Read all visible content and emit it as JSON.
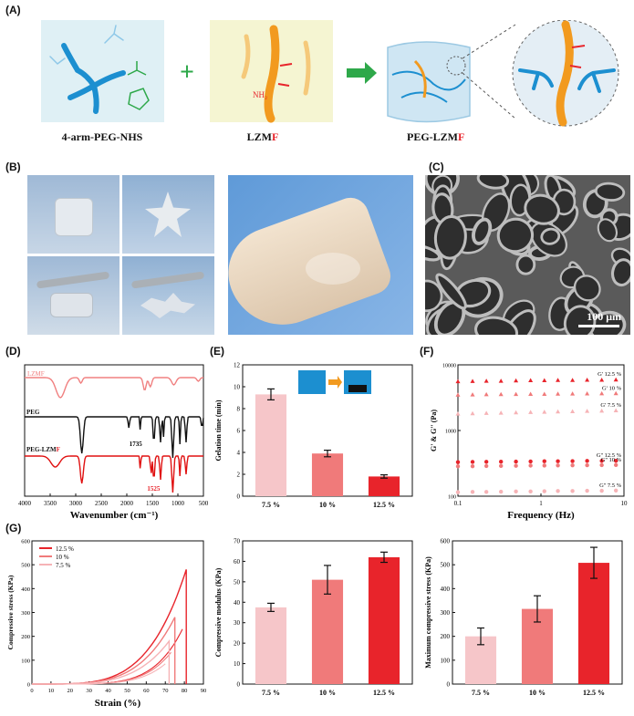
{
  "panels": {
    "A": "(A)",
    "B": "(B)",
    "C": "(C)",
    "D": "(D)",
    "E": "(E)",
    "F": "(F)",
    "G": "(G)"
  },
  "schemeA": {
    "label1": "4-arm-PEG-NHS",
    "label2_main": "LZM",
    "label2_accent": "F",
    "label3_main": "PEG-LZM",
    "label3_accent": "F",
    "nh2": "NH₂",
    "plus": "+",
    "arrow": "→",
    "colors": {
      "accent": "#e8242b",
      "blue": "#1c8fd0",
      "orange": "#f29a1f",
      "green": "#2ea84a",
      "panel1": "#dff0f5",
      "panel2": "#f5f5d2"
    }
  },
  "panelC": {
    "scale_label": "100 μm"
  },
  "chartD": {
    "type": "line",
    "xlabel": "Wavenumber (cm⁻¹)",
    "xticks": [
      4000,
      3500,
      3000,
      2500,
      2000,
      1500,
      1000,
      500
    ],
    "series_labels": [
      "LZMF",
      "PEG",
      "PEG-LZMF"
    ],
    "label_peg_lzm_main": "PEG-LZM",
    "label_peg_lzm_accent": "F",
    "annotations": [
      "1735",
      "1525"
    ],
    "colors": [
      "#f08080",
      "#111111",
      "#e01010"
    ]
  },
  "chart_data": [
    {
      "type": "bar",
      "title": "",
      "categories": [
        "7.5 %",
        "10 %",
        "12.5 %"
      ],
      "values": [
        9.3,
        3.9,
        1.8
      ],
      "errors": [
        0.5,
        0.3,
        0.15
      ],
      "ylabel": "Gelation time (min)",
      "ylim": [
        0,
        12
      ],
      "yticks": [
        0,
        2,
        4,
        6,
        8,
        10,
        12
      ],
      "colors": [
        "#f6c6c9",
        "#f07a7a",
        "#e8242b"
      ]
    },
    {
      "type": "scatter",
      "xlabel": "Frequency (Hz)",
      "ylabel": "G' & G'' (Pa)",
      "xscale": "log",
      "yscale": "log",
      "xlim": [
        0.1,
        10
      ],
      "ylim": [
        100,
        10000
      ],
      "xticks": [
        "0.1",
        "1",
        "10"
      ],
      "yticks": [
        "100",
        "1000",
        "10000"
      ],
      "series": [
        {
          "name": "G' 12.5 %",
          "values": [
            5600,
            5650,
            5700,
            5700,
            5750,
            5800,
            5800,
            5850,
            5850,
            5900,
            5900,
            5950
          ]
        },
        {
          "name": "G' 10 %",
          "values": [
            3500,
            3520,
            3550,
            3560,
            3580,
            3600,
            3600,
            3620,
            3640,
            3650,
            3660,
            3680
          ]
        },
        {
          "name": "G' 7.5 %",
          "values": [
            1800,
            1820,
            1840,
            1860,
            1880,
            1900,
            1920,
            1940,
            1960,
            1980,
            2000,
            2020
          ]
        },
        {
          "name": "G'' 12.5 %",
          "values": [
            330,
            332,
            334,
            335,
            336,
            338,
            340,
            340,
            342,
            344,
            345,
            346
          ]
        },
        {
          "name": "G'' 10 %",
          "values": [
            285,
            286,
            288,
            289,
            290,
            292,
            293,
            294,
            295,
            296,
            297,
            298
          ]
        },
        {
          "name": "G'' 7.5 %",
          "values": [
            115,
            116,
            116,
            117,
            118,
            118,
            119,
            120,
            120,
            121,
            121,
            122
          ]
        }
      ],
      "x": [
        0.1,
        0.15,
        0.22,
        0.33,
        0.5,
        0.75,
        1.1,
        1.6,
        2.4,
        3.6,
        5.4,
        8
      ],
      "colors": [
        "#e8242b",
        "#f07a7a",
        "#f6b3b6",
        "#e8242b",
        "#f07a7a",
        "#f6b3b6"
      ]
    },
    {
      "type": "line",
      "xlabel": "Strain (%)",
      "ylabel": "Compressive stress (KPa)",
      "xlim": [
        0,
        90
      ],
      "ylim": [
        0,
        600
      ],
      "xticks": [
        0,
        10,
        20,
        30,
        40,
        50,
        60,
        70,
        80,
        90
      ],
      "yticks": [
        0,
        100,
        200,
        300,
        400,
        500,
        600
      ],
      "series": [
        {
          "name": "12.5 %",
          "peak_strain": 81,
          "peak_stress": 480
        },
        {
          "name": "10 %",
          "peak_strain": 75,
          "peak_stress": 280
        },
        {
          "name": "7.5 %",
          "peak_strain": 72,
          "peak_stress": 180
        }
      ],
      "colors": [
        "#e8242b",
        "#f07a7a",
        "#f6b3b6"
      ]
    },
    {
      "type": "bar",
      "categories": [
        "7.5 %",
        "10 %",
        "12.5 %"
      ],
      "values": [
        37.5,
        51,
        62
      ],
      "errors": [
        2,
        7,
        2.5
      ],
      "ylabel": "Compressive modulus (KPa)",
      "ylim": [
        0,
        70
      ],
      "yticks": [
        0,
        10,
        20,
        30,
        40,
        50,
        60,
        70
      ],
      "colors": [
        "#f6c6c9",
        "#f07a7a",
        "#e8242b"
      ]
    },
    {
      "type": "bar",
      "categories": [
        "7.5 %",
        "10 %",
        "12.5 %"
      ],
      "values": [
        200,
        315,
        508
      ],
      "errors": [
        35,
        55,
        65
      ],
      "ylabel": "Maximum compressive stress (KPa)",
      "ylim": [
        0,
        600
      ],
      "yticks": [
        0,
        100,
        200,
        300,
        400,
        500,
        600
      ],
      "colors": [
        "#f6c6c9",
        "#f07a7a",
        "#e8242b"
      ]
    }
  ]
}
